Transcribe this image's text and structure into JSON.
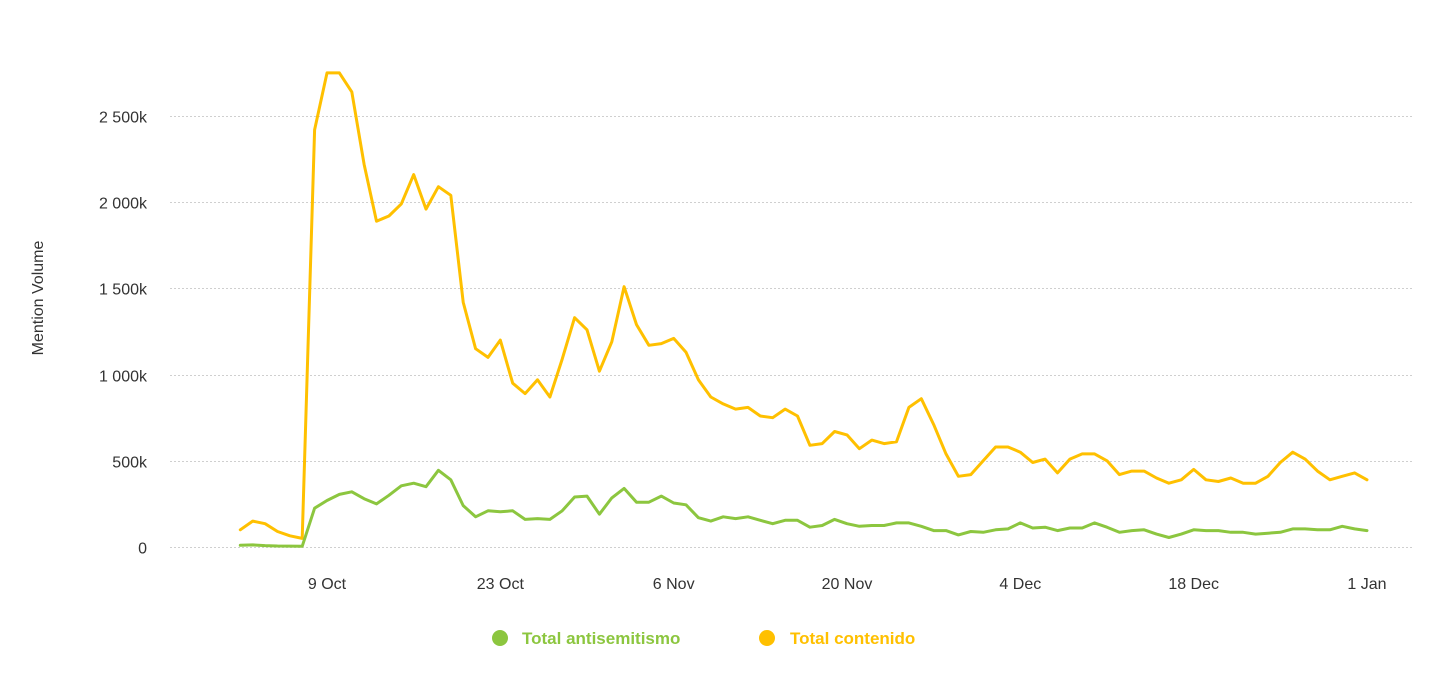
{
  "chart_data": {
    "type": "line",
    "title": "",
    "xlabel": "",
    "ylabel": "Mention Volume",
    "x_start": "2023-10-01",
    "x_end": "2024-01-01",
    "ylim": [
      0,
      2800000
    ],
    "y_ticks": [
      0,
      500000,
      1000000,
      1500000,
      2000000,
      2500000
    ],
    "y_tick_labels": [
      "0",
      "500k",
      "1 000k",
      "1 500k",
      "2 000k",
      "2 500k"
    ],
    "x_ticks": [
      "2023-10-09",
      "2023-10-23",
      "2023-11-06",
      "2023-11-20",
      "2023-12-04",
      "2023-12-18",
      "2024-01-01"
    ],
    "x_tick_labels": [
      "9 Oct",
      "23 Oct",
      "6 Nov",
      "20 Nov",
      "4 Dec",
      "18 Dec",
      "1 Jan"
    ],
    "grid": true,
    "legend_position": "bottom-center",
    "x": [
      "2023-10-02",
      "2023-10-03",
      "2023-10-04",
      "2023-10-05",
      "2023-10-06",
      "2023-10-07",
      "2023-10-08",
      "2023-10-09",
      "2023-10-10",
      "2023-10-11",
      "2023-10-12",
      "2023-10-13",
      "2023-10-14",
      "2023-10-15",
      "2023-10-16",
      "2023-10-17",
      "2023-10-18",
      "2023-10-19",
      "2023-10-20",
      "2023-10-21",
      "2023-10-22",
      "2023-10-23",
      "2023-10-24",
      "2023-10-25",
      "2023-10-26",
      "2023-10-27",
      "2023-10-28",
      "2023-10-29",
      "2023-10-30",
      "2023-10-31",
      "2023-11-01",
      "2023-11-02",
      "2023-11-03",
      "2023-11-04",
      "2023-11-05",
      "2023-11-06",
      "2023-11-07",
      "2023-11-08",
      "2023-11-09",
      "2023-11-10",
      "2023-11-11",
      "2023-11-12",
      "2023-11-13",
      "2023-11-14",
      "2023-11-15",
      "2023-11-16",
      "2023-11-17",
      "2023-11-18",
      "2023-11-19",
      "2023-11-20",
      "2023-11-21",
      "2023-11-22",
      "2023-11-23",
      "2023-11-24",
      "2023-11-25",
      "2023-11-26",
      "2023-11-27",
      "2023-11-28",
      "2023-11-29",
      "2023-11-30",
      "2023-12-01",
      "2023-12-02",
      "2023-12-03",
      "2023-12-04",
      "2023-12-05",
      "2023-12-06",
      "2023-12-07",
      "2023-12-08",
      "2023-12-09",
      "2023-12-10",
      "2023-12-11",
      "2023-12-12",
      "2023-12-13",
      "2023-12-14",
      "2023-12-15",
      "2023-12-16",
      "2023-12-17",
      "2023-12-18",
      "2023-12-19",
      "2023-12-20",
      "2023-12-21",
      "2023-12-22",
      "2023-12-23",
      "2023-12-24",
      "2023-12-25",
      "2023-12-26",
      "2023-12-27",
      "2023-12-28",
      "2023-12-29",
      "2023-12-30",
      "2023-12-31",
      "2024-01-01"
    ],
    "series": [
      {
        "name": "Total antisemitismo",
        "color": "#8cc63f",
        "values": [
          10000,
          12000,
          8000,
          6000,
          5000,
          4000,
          225000,
          270000,
          305000,
          320000,
          280000,
          250000,
          300000,
          355000,
          370000,
          350000,
          445000,
          390000,
          240000,
          175000,
          210000,
          205000,
          210000,
          160000,
          165000,
          160000,
          210000,
          290000,
          295000,
          190000,
          285000,
          340000,
          260000,
          260000,
          295000,
          255000,
          245000,
          170000,
          150000,
          175000,
          165000,
          175000,
          155000,
          135000,
          155000,
          155000,
          115000,
          125000,
          160000,
          135000,
          120000,
          125000,
          125000,
          140000,
          140000,
          120000,
          95000,
          95000,
          70000,
          90000,
          85000,
          100000,
          105000,
          140000,
          110000,
          115000,
          95000,
          110000,
          110000,
          140000,
          115000,
          85000,
          95000,
          100000,
          75000,
          55000,
          75000,
          100000,
          95000,
          95000,
          85000,
          85000,
          75000,
          80000,
          85000,
          105000,
          105000,
          100000,
          100000,
          120000,
          105000,
          95000
        ]
      },
      {
        "name": "Total contenido",
        "color": "#ffc000",
        "values": [
          100000,
          150000,
          135000,
          90000,
          65000,
          50000,
          2420000,
          2750000,
          2750000,
          2640000,
          2220000,
          1890000,
          1920000,
          1990000,
          2160000,
          1960000,
          2090000,
          2040000,
          1420000,
          1150000,
          1100000,
          1200000,
          950000,
          890000,
          970000,
          870000,
          1090000,
          1330000,
          1260000,
          1020000,
          1190000,
          1510000,
          1290000,
          1170000,
          1180000,
          1210000,
          1130000,
          970000,
          870000,
          830000,
          800000,
          810000,
          760000,
          750000,
          800000,
          760000,
          590000,
          600000,
          670000,
          650000,
          570000,
          620000,
          600000,
          610000,
          810000,
          860000,
          710000,
          540000,
          410000,
          420000,
          500000,
          580000,
          580000,
          550000,
          490000,
          510000,
          430000,
          510000,
          540000,
          540000,
          500000,
          420000,
          440000,
          440000,
          400000,
          370000,
          390000,
          450000,
          390000,
          380000,
          400000,
          370000,
          370000,
          410000,
          490000,
          550000,
          510000,
          440000,
          390000,
          410000,
          430000,
          390000
        ]
      }
    ]
  }
}
